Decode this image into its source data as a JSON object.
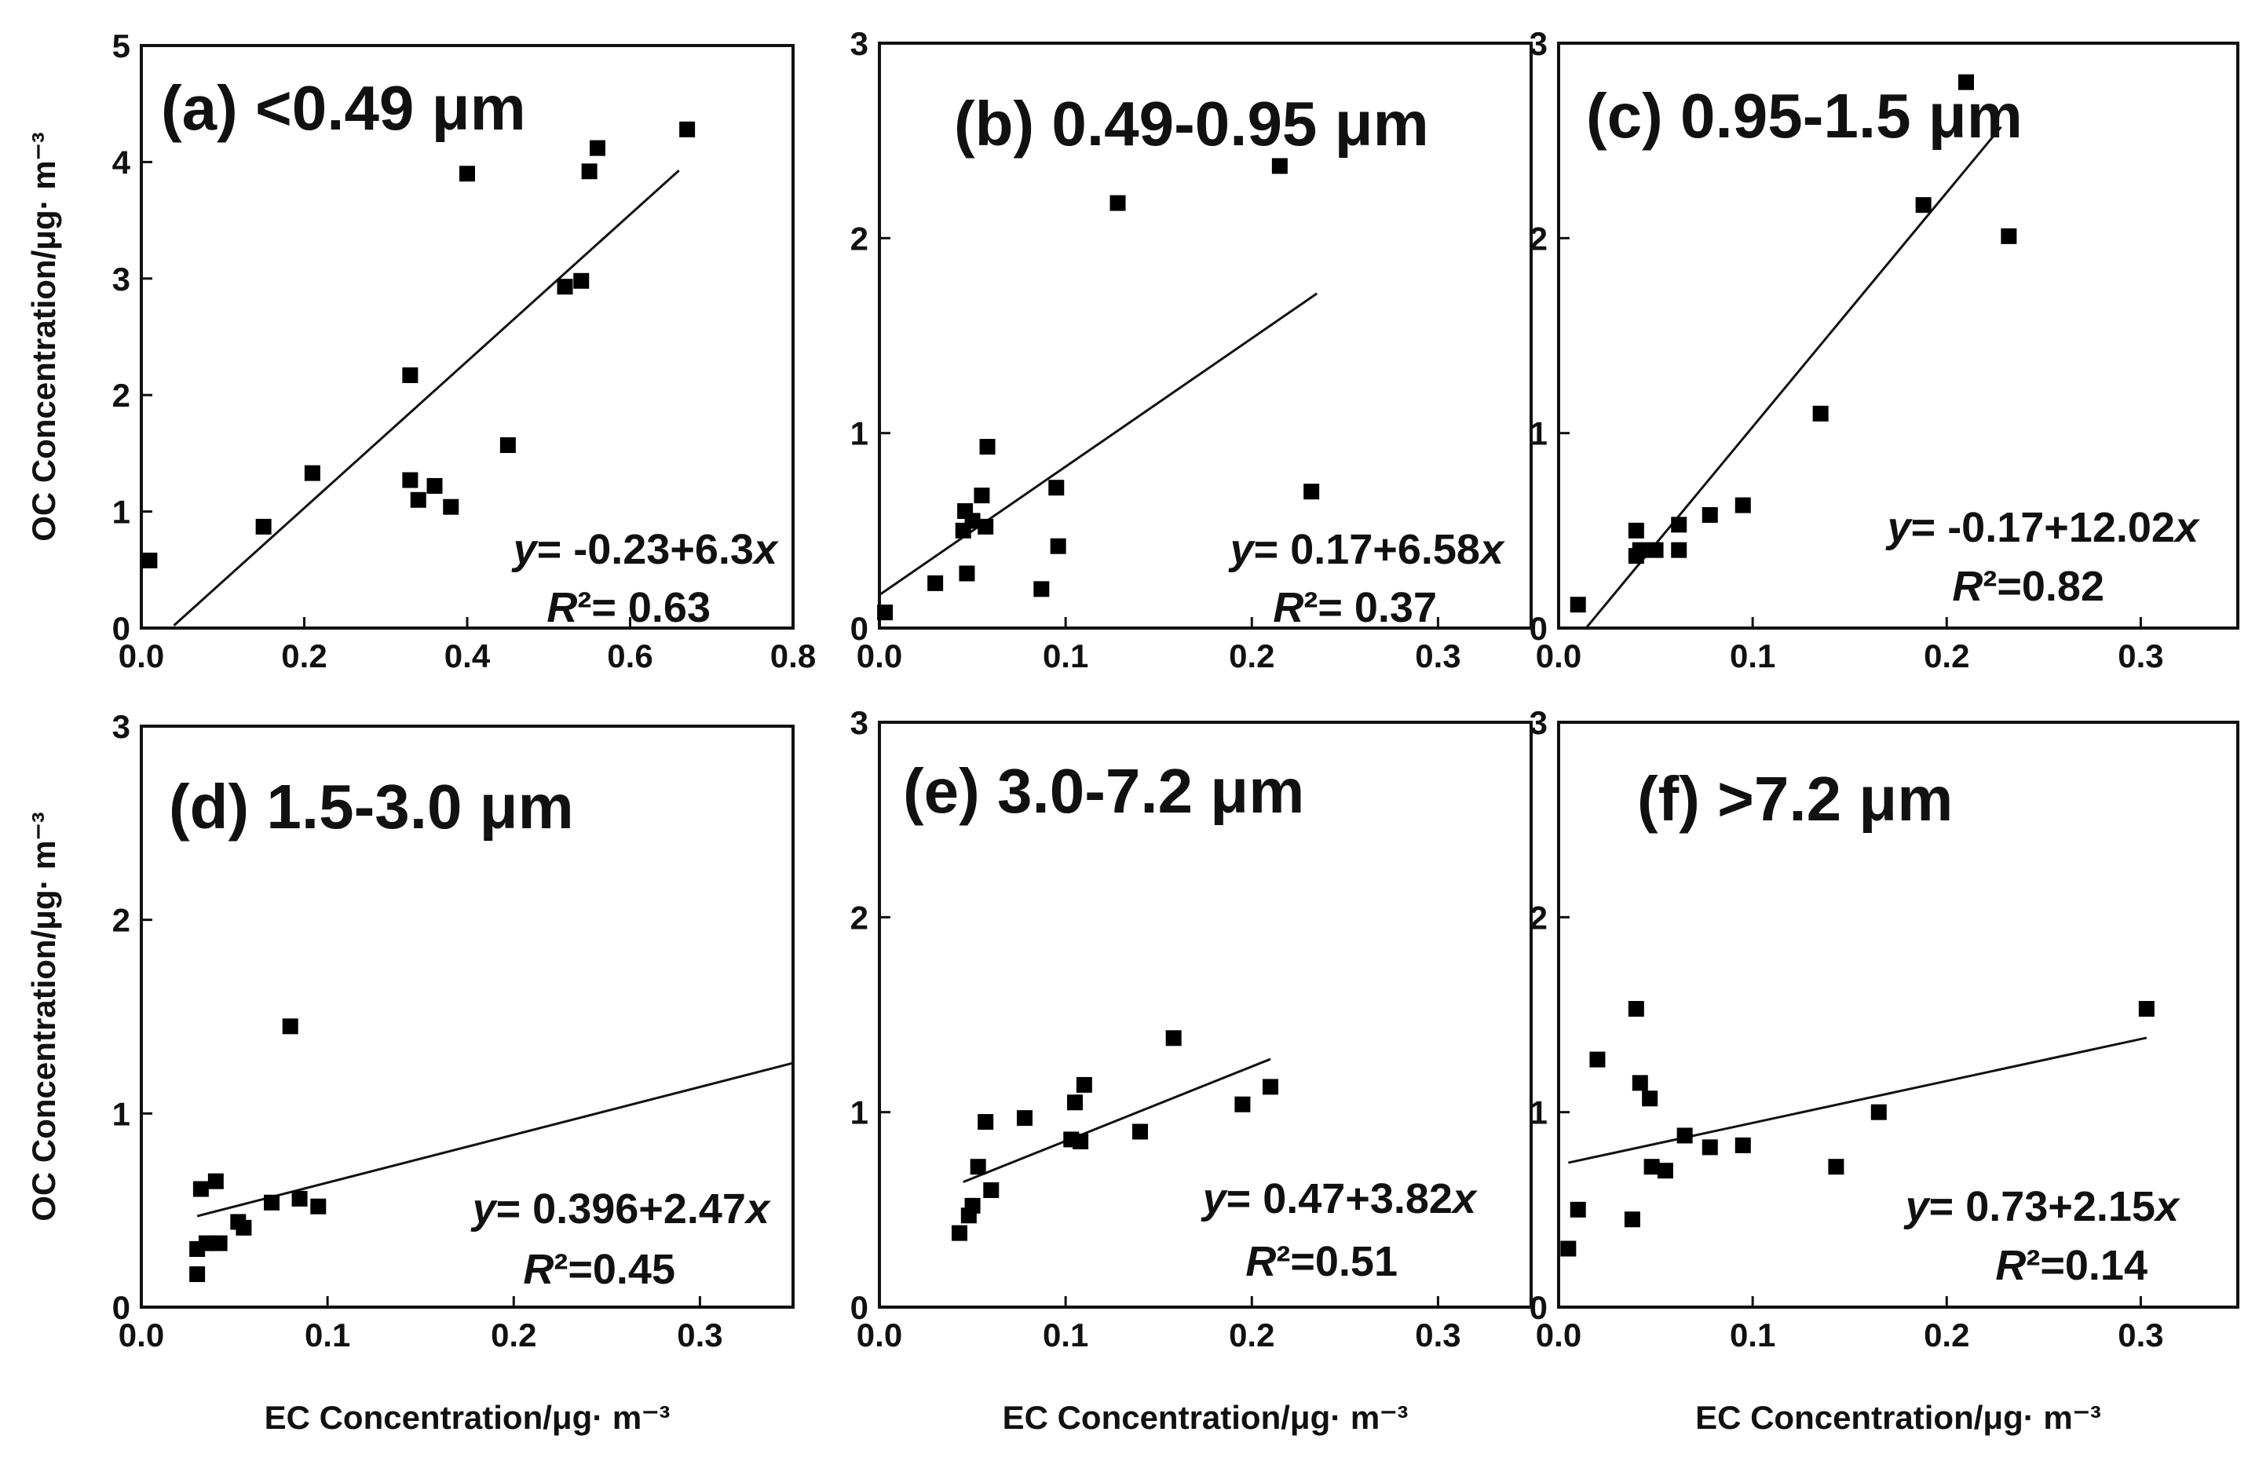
{
  "chart_data": [
    {
      "type": "scatter",
      "title": "(a) <0.49 μm",
      "ylabel": "OC Concentration/μg· m⁻³",
      "xlabel": "",
      "xlim": [
        0,
        0.8
      ],
      "ylim": [
        0,
        5
      ],
      "xticks": [
        "0.0",
        "0.2",
        "0.4",
        "0.6",
        "0.8"
      ],
      "yticks": [
        "0",
        "1",
        "2",
        "3",
        "4",
        "5"
      ],
      "points": [
        [
          0.01,
          0.58
        ],
        [
          0.15,
          0.87
        ],
        [
          0.21,
          1.33
        ],
        [
          0.33,
          2.17
        ],
        [
          0.33,
          1.27
        ],
        [
          0.34,
          1.1
        ],
        [
          0.36,
          1.22
        ],
        [
          0.38,
          1.04
        ],
        [
          0.4,
          3.9
        ],
        [
          0.45,
          1.57
        ],
        [
          0.52,
          2.93
        ],
        [
          0.54,
          2.98
        ],
        [
          0.55,
          3.92
        ],
        [
          0.56,
          4.12
        ],
        [
          0.67,
          4.28
        ]
      ],
      "fit": {
        "intercept": -0.23,
        "slope": 6.3,
        "x_range": [
          0.04,
          0.66
        ]
      },
      "equation": "y= -0.23+6.3x",
      "r2": "R²= 0.63"
    },
    {
      "type": "scatter",
      "title": "(b) 0.49-0.95 μm",
      "ylabel": "",
      "xlabel": "",
      "xlim": [
        0,
        0.35
      ],
      "ylim": [
        0,
        3
      ],
      "xticks": [
        "0.0",
        "0.1",
        "0.2",
        "0.3"
      ],
      "yticks": [
        "0",
        "1",
        "2",
        "3"
      ],
      "points": [
        [
          0.003,
          0.08
        ],
        [
          0.03,
          0.23
        ],
        [
          0.045,
          0.5
        ],
        [
          0.046,
          0.6
        ],
        [
          0.047,
          0.28
        ],
        [
          0.05,
          0.55
        ],
        [
          0.055,
          0.68
        ],
        [
          0.057,
          0.52
        ],
        [
          0.058,
          0.93
        ],
        [
          0.087,
          0.2
        ],
        [
          0.095,
          0.72
        ],
        [
          0.096,
          0.42
        ],
        [
          0.128,
          2.18
        ],
        [
          0.215,
          2.37
        ],
        [
          0.232,
          0.7
        ]
      ],
      "fit": {
        "intercept": 0.17,
        "slope": 6.58,
        "x_range": [
          0.0,
          0.235
        ]
      },
      "equation": "y= 0.17+6.58x",
      "r2": "R²= 0.37"
    },
    {
      "type": "scatter",
      "title": "(c) 0.95-1.5 μm",
      "ylabel": "",
      "xlabel": "",
      "xlim": [
        0,
        0.35
      ],
      "ylim": [
        0,
        3
      ],
      "xticks": [
        "0.0",
        "0.1",
        "0.2",
        "0.3"
      ],
      "yticks": [
        "0",
        "1",
        "2",
        "3"
      ],
      "points": [
        [
          0.01,
          0.12
        ],
        [
          0.04,
          0.37
        ],
        [
          0.04,
          0.5
        ],
        [
          0.042,
          0.4
        ],
        [
          0.05,
          0.4
        ],
        [
          0.062,
          0.4
        ],
        [
          0.062,
          0.53
        ],
        [
          0.078,
          0.58
        ],
        [
          0.095,
          0.63
        ],
        [
          0.135,
          1.1
        ],
        [
          0.188,
          2.17
        ],
        [
          0.21,
          2.8
        ],
        [
          0.232,
          2.01
        ]
      ],
      "fit": {
        "intercept": -0.17,
        "slope": 12.02,
        "x_range": [
          0.014,
          0.228
        ]
      },
      "equation": "y= -0.17+12.02x",
      "r2": "R²=0.82"
    },
    {
      "type": "scatter",
      "title": "(d) 1.5-3.0 μm",
      "ylabel": "OC Concentration/μg· m⁻³",
      "xlabel": "EC Concentration/μg· m⁻³",
      "xlim": [
        0,
        0.35
      ],
      "ylim": [
        0,
        3
      ],
      "xticks": [
        "0.0",
        "0.1",
        "0.2",
        "0.3"
      ],
      "yticks": [
        "0",
        "1",
        "2",
        "3"
      ],
      "points": [
        [
          0.03,
          0.3
        ],
        [
          0.03,
          0.17
        ],
        [
          0.032,
          0.61
        ],
        [
          0.035,
          0.33
        ],
        [
          0.04,
          0.65
        ],
        [
          0.042,
          0.33
        ],
        [
          0.052,
          0.44
        ],
        [
          0.055,
          0.41
        ],
        [
          0.07,
          0.54
        ],
        [
          0.08,
          1.45
        ],
        [
          0.085,
          0.56
        ],
        [
          0.095,
          0.52
        ]
      ],
      "fit": {
        "intercept": 0.396,
        "slope": 2.47,
        "x_range": [
          0.03,
          0.35
        ]
      },
      "equation": "y= 0.396+2.47x",
      "r2": "R²=0.45"
    },
    {
      "type": "scatter",
      "title": "(e) 3.0-7.2 μm",
      "ylabel": "",
      "xlabel": "EC Concentration/μg· m⁻³",
      "xlim": [
        0,
        0.35
      ],
      "ylim": [
        0,
        3
      ],
      "xticks": [
        "0.0",
        "0.1",
        "0.2",
        "0.3"
      ],
      "yticks": [
        "0",
        "1",
        "2",
        "3"
      ],
      "points": [
        [
          0.043,
          0.38
        ],
        [
          0.048,
          0.47
        ],
        [
          0.05,
          0.52
        ],
        [
          0.053,
          0.72
        ],
        [
          0.057,
          0.95
        ],
        [
          0.06,
          0.6
        ],
        [
          0.078,
          0.97
        ],
        [
          0.103,
          0.86
        ],
        [
          0.105,
          1.05
        ],
        [
          0.108,
          0.85
        ],
        [
          0.11,
          1.14
        ],
        [
          0.14,
          0.9
        ],
        [
          0.158,
          1.38
        ],
        [
          0.195,
          1.04
        ],
        [
          0.21,
          1.13
        ]
      ],
      "fit": {
        "intercept": 0.47,
        "slope": 3.82,
        "x_range": [
          0.045,
          0.21
        ]
      },
      "equation": "y= 0.47+3.82x",
      "r2": "R²=0.51"
    },
    {
      "type": "scatter",
      "title": "(f) >7.2 μm",
      "ylabel": "",
      "xlabel": "EC Concentration/μg· m⁻³",
      "xlim": [
        0,
        0.35
      ],
      "ylim": [
        0,
        3
      ],
      "xticks": [
        "0.0",
        "0.1",
        "0.2",
        "0.3"
      ],
      "yticks": [
        "0",
        "1",
        "2",
        "3"
      ],
      "points": [
        [
          0.005,
          0.3
        ],
        [
          0.01,
          0.5
        ],
        [
          0.02,
          1.27
        ],
        [
          0.038,
          0.45
        ],
        [
          0.04,
          1.53
        ],
        [
          0.042,
          1.15
        ],
        [
          0.047,
          1.07
        ],
        [
          0.048,
          0.72
        ],
        [
          0.055,
          0.7
        ],
        [
          0.065,
          0.88
        ],
        [
          0.078,
          0.82
        ],
        [
          0.095,
          0.83
        ],
        [
          0.143,
          0.72
        ],
        [
          0.165,
          1.0
        ],
        [
          0.303,
          1.53
        ]
      ],
      "fit": {
        "intercept": 0.73,
        "slope": 2.15,
        "x_range": [
          0.005,
          0.303
        ]
      },
      "equation": "y= 0.73+2.15x",
      "r2": "R²=0.14"
    }
  ]
}
